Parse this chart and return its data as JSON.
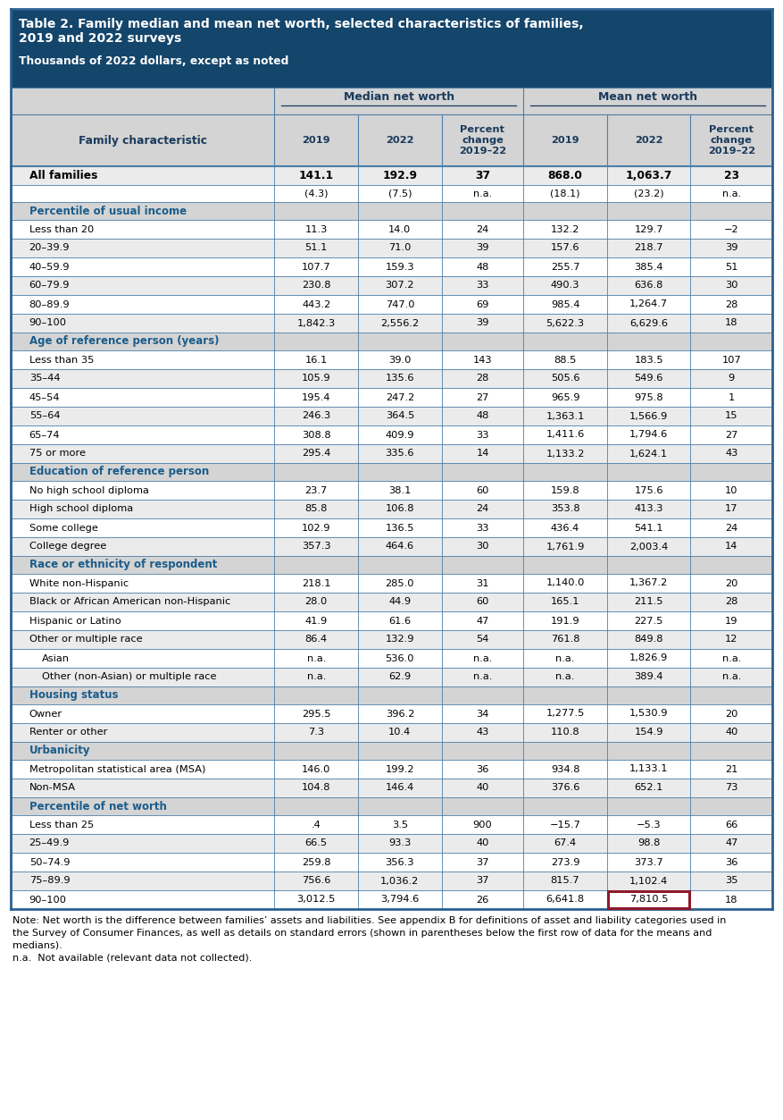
{
  "title_line1": "Table 2. Family median and mean net worth, selected characteristics of families,",
  "title_line2": "2019 and 2022 surveys",
  "subtitle": "Thousands of 2022 dollars, except as noted",
  "header_bg": "#14456b",
  "header_text_color": "#ffffff",
  "section_text_color": "#1a5c8a",
  "border_color": "#4a7faa",
  "highlight_box_color": "#8b1a2a",
  "col_header_bg": "#d4d4d4",
  "row_bg_white": "#ffffff",
  "row_bg_gray": "#ebebeb",
  "rows": [
    {
      "label": "All families",
      "values": [
        "141.1",
        "192.9",
        "37",
        "868.0",
        "1,063.7",
        "23"
      ],
      "bold": true,
      "type": "data"
    },
    {
      "label": "",
      "values": [
        "(4.3)",
        "(7.5)",
        "n.a.",
        "(18.1)",
        "(23.2)",
        "n.a."
      ],
      "bold": false,
      "type": "sub"
    },
    {
      "label": "Percentile of usual income",
      "values": [
        "",
        "",
        "",
        "",
        "",
        ""
      ],
      "bold": false,
      "type": "section"
    },
    {
      "label": "Less than 20",
      "values": [
        "11.3",
        "14.0",
        "24",
        "132.2",
        "129.7",
        "−2"
      ],
      "bold": false,
      "type": "data"
    },
    {
      "label": "20–39.9",
      "values": [
        "51.1",
        "71.0",
        "39",
        "157.6",
        "218.7",
        "39"
      ],
      "bold": false,
      "type": "data"
    },
    {
      "label": "40–59.9",
      "values": [
        "107.7",
        "159.3",
        "48",
        "255.7",
        "385.4",
        "51"
      ],
      "bold": false,
      "type": "data"
    },
    {
      "label": "60–79.9",
      "values": [
        "230.8",
        "307.2",
        "33",
        "490.3",
        "636.8",
        "30"
      ],
      "bold": false,
      "type": "data"
    },
    {
      "label": "80–89.9",
      "values": [
        "443.2",
        "747.0",
        "69",
        "985.4",
        "1,264.7",
        "28"
      ],
      "bold": false,
      "type": "data"
    },
    {
      "label": "90–100",
      "values": [
        "1,842.3",
        "2,556.2",
        "39",
        "5,622.3",
        "6,629.6",
        "18"
      ],
      "bold": false,
      "type": "data"
    },
    {
      "label": "Age of reference person (years)",
      "values": [
        "",
        "",
        "",
        "",
        "",
        ""
      ],
      "bold": false,
      "type": "section"
    },
    {
      "label": "Less than 35",
      "values": [
        "16.1",
        "39.0",
        "143",
        "88.5",
        "183.5",
        "107"
      ],
      "bold": false,
      "type": "data"
    },
    {
      "label": "35–44",
      "values": [
        "105.9",
        "135.6",
        "28",
        "505.6",
        "549.6",
        "9"
      ],
      "bold": false,
      "type": "data"
    },
    {
      "label": "45–54",
      "values": [
        "195.4",
        "247.2",
        "27",
        "965.9",
        "975.8",
        "1"
      ],
      "bold": false,
      "type": "data"
    },
    {
      "label": "55–64",
      "values": [
        "246.3",
        "364.5",
        "48",
        "1,363.1",
        "1,566.9",
        "15"
      ],
      "bold": false,
      "type": "data"
    },
    {
      "label": "65–74",
      "values": [
        "308.8",
        "409.9",
        "33",
        "1,411.6",
        "1,794.6",
        "27"
      ],
      "bold": false,
      "type": "data"
    },
    {
      "label": "75 or more",
      "values": [
        "295.4",
        "335.6",
        "14",
        "1,133.2",
        "1,624.1",
        "43"
      ],
      "bold": false,
      "type": "data"
    },
    {
      "label": "Education of reference person",
      "values": [
        "",
        "",
        "",
        "",
        "",
        ""
      ],
      "bold": false,
      "type": "section"
    },
    {
      "label": "No high school diploma",
      "values": [
        "23.7",
        "38.1",
        "60",
        "159.8",
        "175.6",
        "10"
      ],
      "bold": false,
      "type": "data"
    },
    {
      "label": "High school diploma",
      "values": [
        "85.8",
        "106.8",
        "24",
        "353.8",
        "413.3",
        "17"
      ],
      "bold": false,
      "type": "data"
    },
    {
      "label": "Some college",
      "values": [
        "102.9",
        "136.5",
        "33",
        "436.4",
        "541.1",
        "24"
      ],
      "bold": false,
      "type": "data"
    },
    {
      "label": "College degree",
      "values": [
        "357.3",
        "464.6",
        "30",
        "1,761.9",
        "2,003.4",
        "14"
      ],
      "bold": false,
      "type": "data"
    },
    {
      "label": "Race or ethnicity of respondent",
      "values": [
        "",
        "",
        "",
        "",
        "",
        ""
      ],
      "bold": false,
      "type": "section"
    },
    {
      "label": "White non-Hispanic",
      "values": [
        "218.1",
        "285.0",
        "31",
        "1,140.0",
        "1,367.2",
        "20"
      ],
      "bold": false,
      "type": "data"
    },
    {
      "label": "Black or African American non-Hispanic",
      "values": [
        "28.0",
        "44.9",
        "60",
        "165.1",
        "211.5",
        "28"
      ],
      "bold": false,
      "type": "data"
    },
    {
      "label": "Hispanic or Latino",
      "values": [
        "41.9",
        "61.6",
        "47",
        "191.9",
        "227.5",
        "19"
      ],
      "bold": false,
      "type": "data"
    },
    {
      "label": "Other or multiple race",
      "values": [
        "86.4",
        "132.9",
        "54",
        "761.8",
        "849.8",
        "12"
      ],
      "bold": false,
      "type": "data"
    },
    {
      "label": "Asian",
      "values": [
        "n.a.",
        "536.0",
        "n.a.",
        "n.a.",
        "1,826.9",
        "n.a."
      ],
      "bold": false,
      "type": "data",
      "indent": true
    },
    {
      "label": "Other (non-Asian) or multiple race",
      "values": [
        "n.a.",
        "62.9",
        "n.a.",
        "n.a.",
        "389.4",
        "n.a."
      ],
      "bold": false,
      "type": "data",
      "indent": true
    },
    {
      "label": "Housing status",
      "values": [
        "",
        "",
        "",
        "",
        "",
        ""
      ],
      "bold": false,
      "type": "section"
    },
    {
      "label": "Owner",
      "values": [
        "295.5",
        "396.2",
        "34",
        "1,277.5",
        "1,530.9",
        "20"
      ],
      "bold": false,
      "type": "data"
    },
    {
      "label": "Renter or other",
      "values": [
        "7.3",
        "10.4",
        "43",
        "110.8",
        "154.9",
        "40"
      ],
      "bold": false,
      "type": "data"
    },
    {
      "label": "Urbanicity",
      "values": [
        "",
        "",
        "",
        "",
        "",
        ""
      ],
      "bold": false,
      "type": "section"
    },
    {
      "label": "Metropolitan statistical area (MSA)",
      "values": [
        "146.0",
        "199.2",
        "36",
        "934.8",
        "1,133.1",
        "21"
      ],
      "bold": false,
      "type": "data"
    },
    {
      "label": "Non-MSA",
      "values": [
        "104.8",
        "146.4",
        "40",
        "376.6",
        "652.1",
        "73"
      ],
      "bold": false,
      "type": "data"
    },
    {
      "label": "Percentile of net worth",
      "values": [
        "",
        "",
        "",
        "",
        "",
        ""
      ],
      "bold": false,
      "type": "section"
    },
    {
      "label": "Less than 25",
      "values": [
        ".4",
        "3.5",
        "900",
        "−15.7",
        "−5.3",
        "66"
      ],
      "bold": false,
      "type": "data"
    },
    {
      "label": "25–49.9",
      "values": [
        "66.5",
        "93.3",
        "40",
        "67.4",
        "98.8",
        "47"
      ],
      "bold": false,
      "type": "data"
    },
    {
      "label": "50–74.9",
      "values": [
        "259.8",
        "356.3",
        "37",
        "273.9",
        "373.7",
        "36"
      ],
      "bold": false,
      "type": "data"
    },
    {
      "label": "75–89.9",
      "values": [
        "756.6",
        "1,036.2",
        "37",
        "815.7",
        "1,102.4",
        "35"
      ],
      "bold": false,
      "type": "data"
    },
    {
      "label": "90–100",
      "values": [
        "3,012.5",
        "3,794.6",
        "26",
        "6,641.8",
        "7,810.5",
        "18"
      ],
      "bold": false,
      "type": "data",
      "highlight_col5": true
    }
  ],
  "note_lines": [
    "Note: Net worth is the difference between families’ assets and liabilities. See appendix B for definitions of asset and liability categories used in",
    "the Survey of Consumer Finances, as well as details on standard errors (shown in parentheses below the first row of data for the means and",
    "medians).",
    "n.a.  Not available (relevant data not collected)."
  ]
}
